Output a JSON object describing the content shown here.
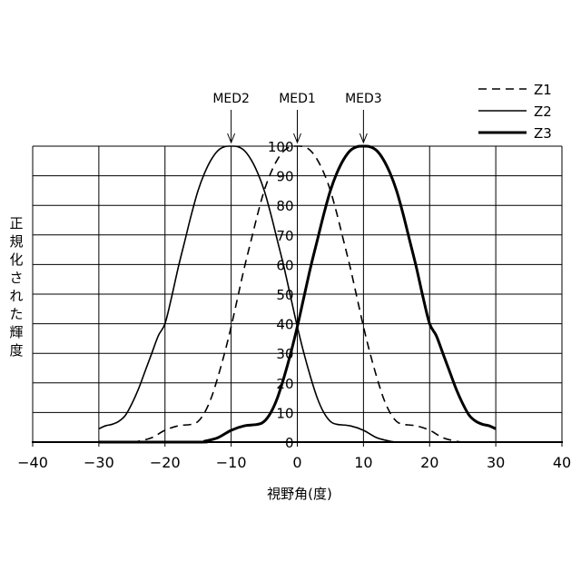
{
  "chart_data": {
    "type": "line",
    "title": "",
    "xlabel": "視野角(度)",
    "ylabel": "正規化された輝度",
    "xlim": [
      -40,
      40
    ],
    "ylim": [
      0,
      100
    ],
    "xticks": [
      "−40",
      "−30",
      "−20",
      "−10",
      "0",
      "10",
      "20",
      "30",
      "40"
    ],
    "yticks": [
      "0",
      "10",
      "20",
      "30",
      "40",
      "50",
      "60",
      "70",
      "80",
      "90",
      "100"
    ],
    "grid": true,
    "legend_position": "top-right",
    "annotations": [
      {
        "label": "MED2",
        "x": -10
      },
      {
        "label": "MED1",
        "x": 0
      },
      {
        "label": "MED3",
        "x": 10
      }
    ],
    "series": [
      {
        "name": "Z1",
        "style": "dashed",
        "line_width": "thin",
        "points": [
          [
            -25,
            0
          ],
          [
            -24,
            0.3
          ],
          [
            -22,
            1.5
          ],
          [
            -20,
            4
          ],
          [
            -18,
            5.5
          ],
          [
            -16,
            6
          ],
          [
            -15,
            7
          ],
          [
            -14,
            10
          ],
          [
            -13,
            15
          ],
          [
            -12,
            22
          ],
          [
            -11,
            30
          ],
          [
            -10,
            39
          ],
          [
            -9,
            49
          ],
          [
            -8,
            59
          ],
          [
            -7,
            68
          ],
          [
            -6,
            77
          ],
          [
            -5,
            85
          ],
          [
            -4,
            91
          ],
          [
            -3,
            95.5
          ],
          [
            -2,
            98.5
          ],
          [
            -1,
            99.8
          ],
          [
            0,
            100
          ],
          [
            1,
            99.8
          ],
          [
            2,
            98.5
          ],
          [
            3,
            95.5
          ],
          [
            4,
            91
          ],
          [
            5,
            85
          ],
          [
            6,
            77
          ],
          [
            7,
            68
          ],
          [
            8,
            59
          ],
          [
            9,
            49
          ],
          [
            10,
            39
          ],
          [
            11,
            30
          ],
          [
            12,
            22
          ],
          [
            13,
            15
          ],
          [
            14,
            10
          ],
          [
            15,
            7
          ],
          [
            16,
            6
          ],
          [
            18,
            5.5
          ],
          [
            20,
            4
          ],
          [
            22,
            1.5
          ],
          [
            24,
            0.3
          ],
          [
            25,
            0
          ]
        ]
      },
      {
        "name": "Z2",
        "style": "solid",
        "line_width": "thin",
        "points": [
          [
            -30,
            4.5
          ],
          [
            -29,
            5.5
          ],
          [
            -28,
            6
          ],
          [
            -27,
            7
          ],
          [
            -26,
            9
          ],
          [
            -25,
            13
          ],
          [
            -24,
            18
          ],
          [
            -23,
            24
          ],
          [
            -22,
            30
          ],
          [
            -21,
            36
          ],
          [
            -20,
            40
          ],
          [
            -19,
            49
          ],
          [
            -18,
            59
          ],
          [
            -17,
            68
          ],
          [
            -16,
            77
          ],
          [
            -15,
            85
          ],
          [
            -14,
            91
          ],
          [
            -13,
            95.5
          ],
          [
            -12,
            98.5
          ],
          [
            -11,
            99.8
          ],
          [
            -10,
            100
          ],
          [
            -9,
            99.8
          ],
          [
            -8,
            98.5
          ],
          [
            -7,
            95.5
          ],
          [
            -6,
            91
          ],
          [
            -5,
            85
          ],
          [
            -4,
            77
          ],
          [
            -3,
            68
          ],
          [
            -2,
            59
          ],
          [
            -1,
            49
          ],
          [
            0,
            39
          ],
          [
            1,
            30
          ],
          [
            2,
            22
          ],
          [
            3,
            15
          ],
          [
            4,
            10
          ],
          [
            5,
            7
          ],
          [
            6,
            6
          ],
          [
            8,
            5.5
          ],
          [
            10,
            4
          ],
          [
            12,
            1.5
          ],
          [
            14,
            0.3
          ],
          [
            15,
            0
          ]
        ]
      },
      {
        "name": "Z3",
        "style": "solid",
        "line_width": "thick",
        "points": [
          [
            -30,
            0
          ],
          [
            -15,
            0
          ],
          [
            -14,
            0.3
          ],
          [
            -12,
            1.5
          ],
          [
            -10,
            4
          ],
          [
            -8,
            5.5
          ],
          [
            -6,
            6
          ],
          [
            -5,
            7
          ],
          [
            -4,
            10
          ],
          [
            -3,
            15
          ],
          [
            -2,
            22
          ],
          [
            -1,
            30
          ],
          [
            0,
            39
          ],
          [
            1,
            49
          ],
          [
            2,
            59
          ],
          [
            3,
            68
          ],
          [
            4,
            77
          ],
          [
            5,
            85
          ],
          [
            6,
            91
          ],
          [
            7,
            95.5
          ],
          [
            8,
            98.5
          ],
          [
            9,
            99.8
          ],
          [
            10,
            100
          ],
          [
            11,
            99.8
          ],
          [
            12,
            98.5
          ],
          [
            13,
            95.5
          ],
          [
            14,
            91
          ],
          [
            15,
            85
          ],
          [
            16,
            77
          ],
          [
            17,
            68
          ],
          [
            18,
            59
          ],
          [
            19,
            49
          ],
          [
            20,
            40
          ],
          [
            21,
            36
          ],
          [
            22,
            30
          ],
          [
            23,
            24
          ],
          [
            24,
            18
          ],
          [
            25,
            13
          ],
          [
            26,
            9
          ],
          [
            27,
            7
          ],
          [
            28,
            6
          ],
          [
            29,
            5.5
          ],
          [
            30,
            4.5
          ]
        ]
      }
    ]
  }
}
